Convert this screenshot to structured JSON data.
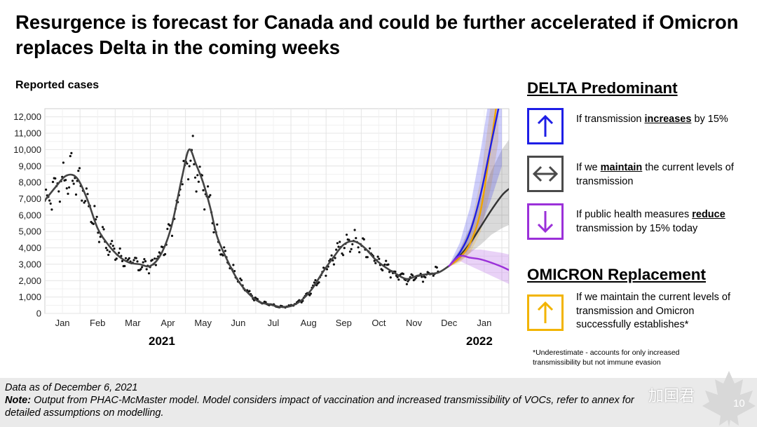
{
  "title": "Resurgence is forecast for Canada and could be further accelerated if Omicron replaces Delta in the coming weeks",
  "chart_data": {
    "type": "line",
    "ylabel": "Reported cases",
    "ylim": [
      0,
      12500
    ],
    "yticks": [
      0,
      1000,
      2000,
      3000,
      4000,
      5000,
      6000,
      7000,
      8000,
      9000,
      10000,
      11000,
      12000
    ],
    "yticks_label": [
      "0",
      "1,000",
      "2,000",
      "3,000",
      "4,000",
      "5,000",
      "6,000",
      "7,000",
      "8,000",
      "9,000",
      "10,000",
      "11,000",
      "12,000"
    ],
    "xlim": [
      0,
      13.2
    ],
    "xticks": [
      0.5,
      1.5,
      2.5,
      3.5,
      4.5,
      5.5,
      6.5,
      7.5,
      8.5,
      9.5,
      10.5,
      11.5,
      12.5
    ],
    "xtick_labels": [
      "Jan",
      "Feb",
      "Mar",
      "Apr",
      "May",
      "Jun",
      "Jul",
      "Aug",
      "Sep",
      "Oct",
      "Nov",
      "Dec",
      "Jan"
    ],
    "years": [
      "2021",
      "2022"
    ],
    "grid": true,
    "series": [
      {
        "name": "",
        "color": "#444444",
        "kind": "observed-trend",
        "x": [
          0,
          0.3,
          0.6,
          0.9,
          1.2,
          1.5,
          1.8,
          2.1,
          2.4,
          2.7,
          3.0,
          3.3,
          3.6,
          3.9,
          4.1,
          4.3,
          4.5,
          4.7,
          4.9,
          5.2,
          5.5,
          5.8,
          6.1,
          6.4,
          6.7,
          7.0,
          7.3,
          7.6,
          7.9,
          8.2,
          8.5,
          8.8,
          9.1,
          9.4,
          9.7,
          10.0,
          10.3,
          10.6,
          10.9,
          11.2,
          11.5
        ],
        "y": [
          6900,
          7700,
          8400,
          8300,
          7000,
          5200,
          4200,
          3500,
          3100,
          3000,
          2900,
          3600,
          5300,
          8300,
          10000,
          9100,
          8000,
          6500,
          4700,
          3200,
          2000,
          1200,
          700,
          550,
          400,
          450,
          800,
          1500,
          2500,
          3400,
          4200,
          4400,
          4000,
          3300,
          2800,
          2400,
          2100,
          2300,
          2400,
          2500,
          2900
        ]
      },
      {
        "name": "If transmission increases by 15%",
        "color": "#1e1ee6",
        "kind": "forecast",
        "x": [
          11.5,
          11.8,
          12.1,
          12.4,
          12.7,
          13.0
        ],
        "y": [
          2900,
          3700,
          5000,
          7300,
          10400,
          13500
        ],
        "band_upper": [
          2950,
          4300,
          6500,
          10000,
          14000,
          18000
        ],
        "band_lower": [
          2850,
          3300,
          4000,
          5300,
          7000,
          9000
        ]
      },
      {
        "name": "If we maintain the current levels of transmission",
        "color": "#333333",
        "kind": "forecast",
        "x": [
          11.5,
          11.8,
          12.1,
          12.4,
          12.7,
          13.0,
          13.2
        ],
        "y": [
          2900,
          3500,
          4300,
          5300,
          6300,
          7200,
          7600
        ],
        "band_upper": [
          2950,
          3900,
          5300,
          7000,
          8700,
          10000,
          10600
        ],
        "band_lower": [
          2850,
          3200,
          3700,
          4200,
          4800,
          5200,
          5400
        ]
      },
      {
        "name": "If public health measures reduce transmission by 15% today",
        "color": "#9b30d9",
        "kind": "forecast",
        "x": [
          11.5,
          11.8,
          12.1,
          12.4,
          12.7,
          13.0,
          13.2
        ],
        "y": [
          2900,
          3500,
          3400,
          3300,
          3100,
          2850,
          2650
        ],
        "band_upper": [
          2950,
          3800,
          3900,
          3900,
          3800,
          3700,
          3600
        ],
        "band_lower": [
          2850,
          3200,
          2900,
          2600,
          2300,
          2000,
          1800
        ]
      },
      {
        "name": "If we maintain the current levels of transmission and Omicron successfully establishes",
        "color": "#f0a500",
        "kind": "forecast",
        "x": [
          11.5,
          11.8,
          12.1,
          12.4,
          12.7,
          12.9
        ],
        "y": [
          2900,
          3400,
          4300,
          6300,
          10500,
          13500
        ],
        "band_upper": [
          2950,
          3800,
          5200,
          8200,
          13000,
          15000
        ],
        "band_lower": [
          2850,
          3100,
          3700,
          5000,
          7800,
          10500
        ]
      }
    ]
  },
  "legend": {
    "delta_heading": "DELTA Predominant",
    "increase": {
      "pre": "If transmission ",
      "key": "increases",
      "post": " by 15%"
    },
    "maintain": {
      "pre": "If we ",
      "key": "maintain",
      "post": " the current levels of transmission"
    },
    "reduce": {
      "pre": "If public health measures ",
      "key": "reduce ",
      "post": "transmission by 15% today"
    },
    "omicron_heading": "OMICRON Replacement",
    "omicron": "If we maintain the current levels of transmission and Omicron successfully establishes*",
    "colors": {
      "increase": "#1e1ee6",
      "maintain": "#4a4a4a",
      "reduce": "#9b30d9",
      "omicron": "#f2b400"
    }
  },
  "footnote": "*Underestimate - accounts for only increased transmissibility but not immune evasion",
  "footer": {
    "data_as_of": "Data as of December 6, 2021",
    "note_label": "Note:",
    "note_text": " Output from PHAC-McMaster model. Model considers impact of vaccination and increased transmissibility of VOCs, refer to annex for detailed assumptions on modelling.",
    "watermark": "加国君",
    "page": "10"
  }
}
